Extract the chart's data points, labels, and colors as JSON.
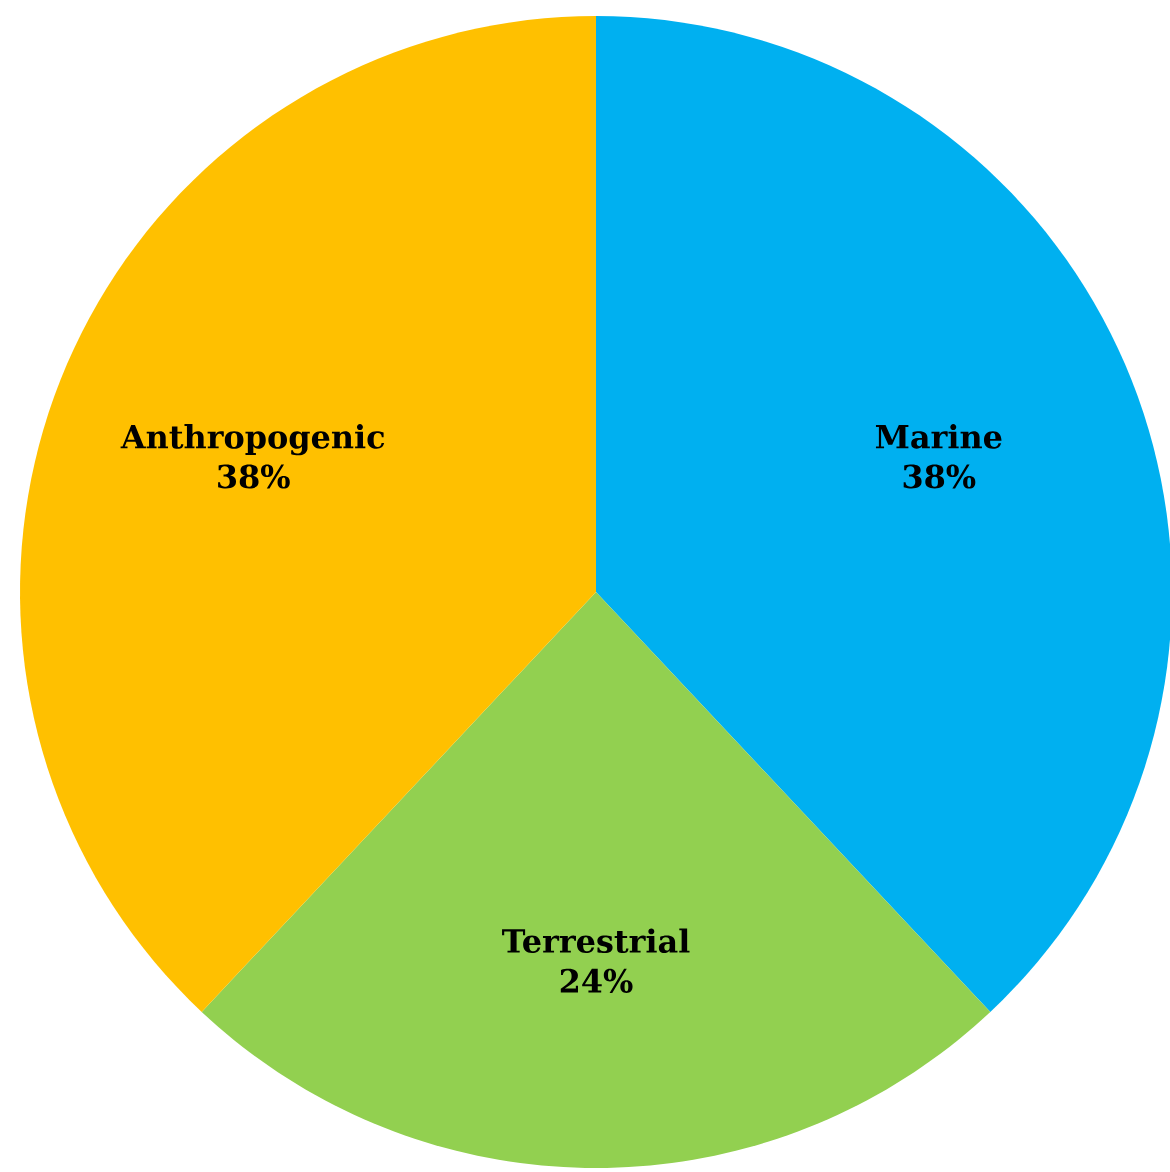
{
  "chart_data": {
    "type": "pie",
    "categories": [
      "Marine",
      "Terrestrial",
      "Anthropogenic"
    ],
    "values": [
      38,
      24,
      38
    ],
    "value_labels": [
      "38%",
      "24%",
      "38%"
    ],
    "colors": [
      "#00b0f0",
      "#92d050",
      "#ffc000"
    ]
  }
}
